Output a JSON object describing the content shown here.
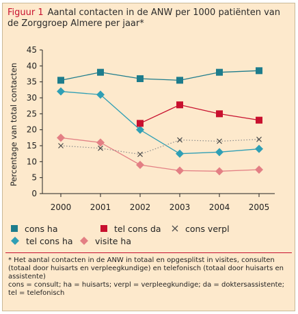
{
  "caption": {
    "label": "Figuur 1",
    "text": "Aantal contacten in de ANW per 1000 patiënten van de Zorggroep Almere per jaar*"
  },
  "chart_data": {
    "type": "line",
    "title": "",
    "xlabel": "",
    "ylabel": "Percentage van total contacten",
    "x": [
      "2000",
      "2001",
      "2002",
      "2003",
      "2004",
      "2005"
    ],
    "ylim": [
      0,
      45
    ],
    "yticks": [
      "0",
      "5",
      "10",
      "15",
      "20",
      "25",
      "30",
      "35",
      "40",
      "45"
    ],
    "grid": false,
    "legend_position": "bottom",
    "series": [
      {
        "name": "cons ha",
        "values": [
          35.5,
          38.0,
          36.0,
          35.5,
          38.0,
          38.5
        ],
        "color": "#1d7c8c",
        "marker": "square",
        "line": "solid",
        "line_color": "#1d7c8c"
      },
      {
        "name": "tel cons ha",
        "values": [
          32.0,
          31.0,
          20.0,
          12.5,
          13.0,
          14.0
        ],
        "color": "#2f9fb5",
        "marker": "diamond",
        "line": "solid",
        "line_color": "#2f9fb5"
      },
      {
        "name": "tel cons da",
        "values": [
          null,
          null,
          22.0,
          27.8,
          25.0,
          23.0
        ],
        "color": "#c8102e",
        "marker": "square",
        "line": "solid",
        "line_color": "#c8102e"
      },
      {
        "name": "visite ha",
        "values": [
          17.5,
          16.0,
          9.0,
          7.2,
          7.0,
          7.5
        ],
        "color": "#e37f84",
        "marker": "diamond",
        "line": "solid",
        "line_color": "#e37f84"
      },
      {
        "name": "cons verpl",
        "values": [
          15.0,
          14.2,
          12.3,
          16.8,
          16.4,
          17.0
        ],
        "color": "#4a4a4a",
        "marker": "x",
        "line": "dotted",
        "line_color": "#8a8a8a"
      }
    ]
  },
  "legend": {
    "cons_ha": "cons ha",
    "tel_cons_da": "tel cons da",
    "cons_verpl": "cons verpl",
    "tel_cons_ha": "tel cons ha",
    "visite_ha": "visite ha"
  },
  "footnote": {
    "line1": "* Het aantal contacten in de ANW in totaal en opgesplitst in visites, consulten (totaal door huisarts en verpleegkundige) en telefonisch (totaal door huisarts en assistente)",
    "line2": "cons = consult; ha = huisarts; verpl = verpleegkundige; da = doktersassistente;",
    "line3": "tel = telefonisch"
  }
}
